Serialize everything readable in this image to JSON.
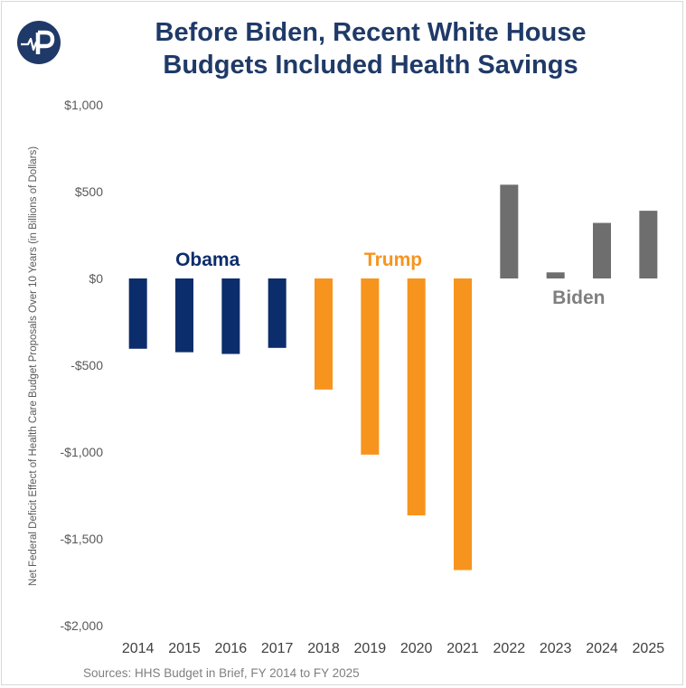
{
  "header": {
    "title_line1": "Before Biden, Recent White House",
    "title_line2": "Budgets Included Health Savings"
  },
  "logo": {
    "icon": "kff-p-logo-icon",
    "color": "#1f3a68"
  },
  "footer": {
    "source": "Sources: HHS Budget in Brief, FY 2014 to FY 2025"
  },
  "chart_data": {
    "type": "bar",
    "title": "Before Biden, Recent White House Budgets Included Health Savings",
    "xlabel": "",
    "ylabel": "Net Federal Deficit Effect of Health Care Budget Proposals Over 10 Years (in Billions of Dollars)",
    "ylim": [
      -2000,
      1000
    ],
    "yticks": [
      1000,
      500,
      0,
      -500,
      -1000,
      -1500,
      -2000
    ],
    "ytick_labels": [
      "$1,000",
      "$500",
      "$0",
      "-$500",
      "-$1,000",
      "-$1,500",
      "-$2,000"
    ],
    "grid": false,
    "categories": [
      "2014",
      "2015",
      "2016",
      "2017",
      "2018",
      "2019",
      "2020",
      "2021",
      "2022",
      "2023",
      "2024",
      "2025"
    ],
    "values": [
      -405,
      -425,
      -435,
      -400,
      -640,
      -1015,
      -1365,
      -1680,
      540,
      35,
      320,
      390
    ],
    "groups": [
      {
        "name": "Obama",
        "color": "#0c2d6b",
        "categories": [
          "2014",
          "2015",
          "2016",
          "2017"
        ]
      },
      {
        "name": "Trump",
        "color": "#f7941d",
        "categories": [
          "2018",
          "2019",
          "2020",
          "2021"
        ]
      },
      {
        "name": "Biden",
        "color": "#6e6e6e",
        "categories": [
          "2022",
          "2023",
          "2024",
          "2025"
        ]
      }
    ],
    "annotations": [
      {
        "text": "Obama",
        "color": "#0c2d6b"
      },
      {
        "text": "Trump",
        "color": "#f7941d"
      },
      {
        "text": "Biden",
        "color": "#7f7f7f"
      }
    ]
  }
}
